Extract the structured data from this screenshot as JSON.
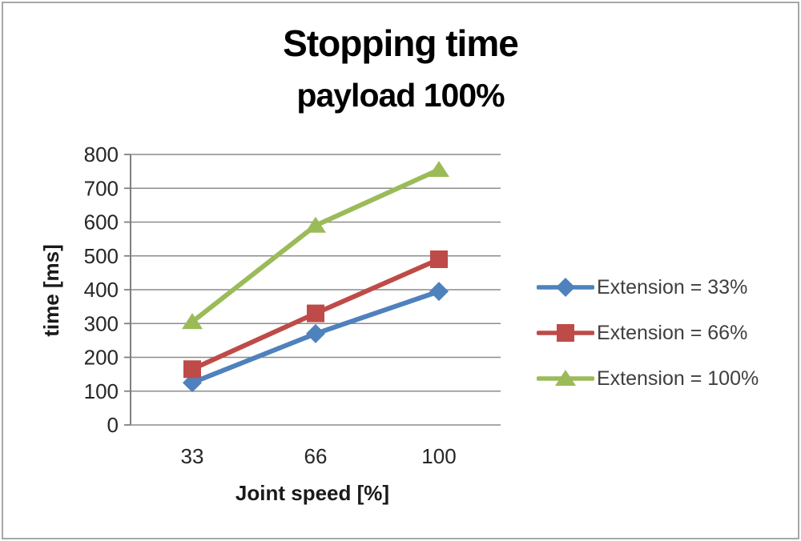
{
  "figure": {
    "title": "Stopping time",
    "subtitle": "payload 100%"
  },
  "chart_data": {
    "type": "line",
    "title": "Stopping time",
    "subtitle": "payload 100%",
    "xlabel": "Joint speed [%]",
    "ylabel": "time [ms]",
    "categories": [
      "33",
      "66",
      "100"
    ],
    "ylim": [
      0,
      800
    ],
    "y_ticks": [
      0,
      100,
      200,
      300,
      400,
      500,
      600,
      700,
      800
    ],
    "grid": true,
    "legend_position": "right",
    "series": [
      {
        "name": "Extension = 33%",
        "marker": "diamond",
        "color": "#4F81BD",
        "values": [
          125,
          270,
          395
        ]
      },
      {
        "name": "Extension = 66%",
        "marker": "square",
        "color": "#BE4B48",
        "values": [
          165,
          330,
          490
        ]
      },
      {
        "name": "Extension = 100%",
        "marker": "triangle",
        "color": "#9BBB59",
        "values": [
          305,
          590,
          755
        ]
      }
    ]
  },
  "style": {
    "series_blue": "#4F81BD",
    "series_red": "#BE4B48",
    "series_green": "#9BBB59",
    "gridline_color": "#8c8c8c",
    "axis_color": "#7f7f7f",
    "tick_label_color": "#262626",
    "legend_text_color": "#3f3f3f",
    "title_color": "#000000",
    "frame_border_color": "#a6a6a6"
  }
}
